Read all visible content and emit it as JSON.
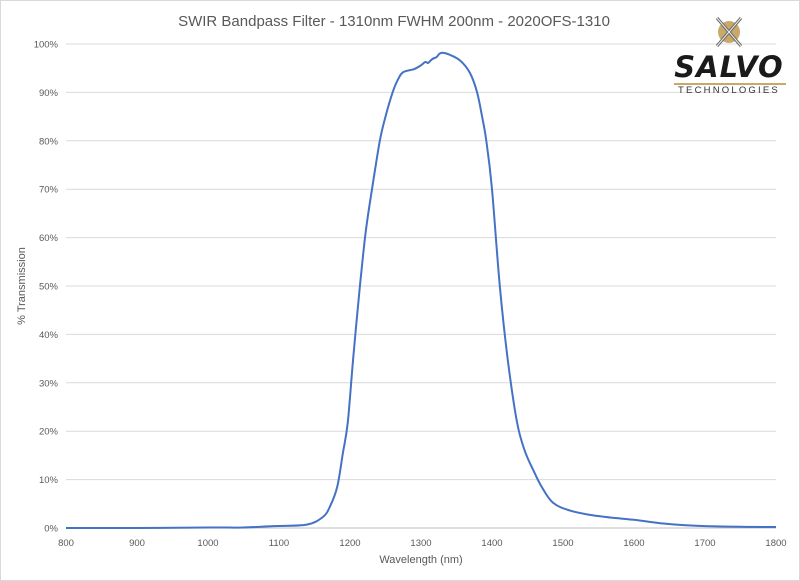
{
  "chart_data": {
    "type": "line",
    "title": "SWIR Bandpass Filter - 1310nm FWHM 200nm - 2020OFS-1310",
    "xlabel": "Wavelength (nm)",
    "ylabel": "% Transmission",
    "xlim": [
      800,
      1800
    ],
    "ylim": [
      0,
      100
    ],
    "xticks": [
      "800",
      "900",
      "1000",
      "1100",
      "1200",
      "1300",
      "1400",
      "1500",
      "1600",
      "1700",
      "1800"
    ],
    "yticks": [
      "0%",
      "10%",
      "20%",
      "30%",
      "40%",
      "50%",
      "60%",
      "70%",
      "80%",
      "90%",
      "100%"
    ],
    "grid": "horizontal",
    "series_color": "#4472c4",
    "x": [
      800,
      900,
      1000,
      1050,
      1092,
      1139,
      1162,
      1172,
      1182,
      1190,
      1197,
      1205,
      1214,
      1222,
      1231,
      1242,
      1250,
      1260,
      1268,
      1275,
      1290,
      1300,
      1306,
      1310,
      1316,
      1322,
      1326,
      1331,
      1340,
      1355,
      1369,
      1379,
      1386,
      1392,
      1400,
      1411,
      1422,
      1435,
      1446,
      1458,
      1470,
      1486,
      1510,
      1538,
      1570,
      1600,
      1637,
      1670,
      1700,
      1750,
      1800
    ],
    "y": [
      0,
      0,
      0.1,
      0.1,
      0.4,
      0.7,
      2.3,
      4.5,
      8.5,
      15.5,
      22,
      36,
      50,
      61,
      70,
      80,
      85,
      90,
      92.8,
      94.2,
      94.8,
      95.6,
      96.3,
      96.1,
      96.9,
      97.3,
      98.0,
      98.2,
      97.8,
      96.6,
      94.0,
      90,
      85,
      80,
      70,
      50,
      35,
      22,
      16,
      12,
      8.5,
      5.2,
      3.6,
      2.7,
      2.1,
      1.7,
      1.0,
      0.6,
      0.4,
      0.25,
      0.2
    ]
  },
  "logo": {
    "name": "SALVO",
    "subtitle": "TECHNOLOGIES",
    "accent": "#c9a86a"
  }
}
